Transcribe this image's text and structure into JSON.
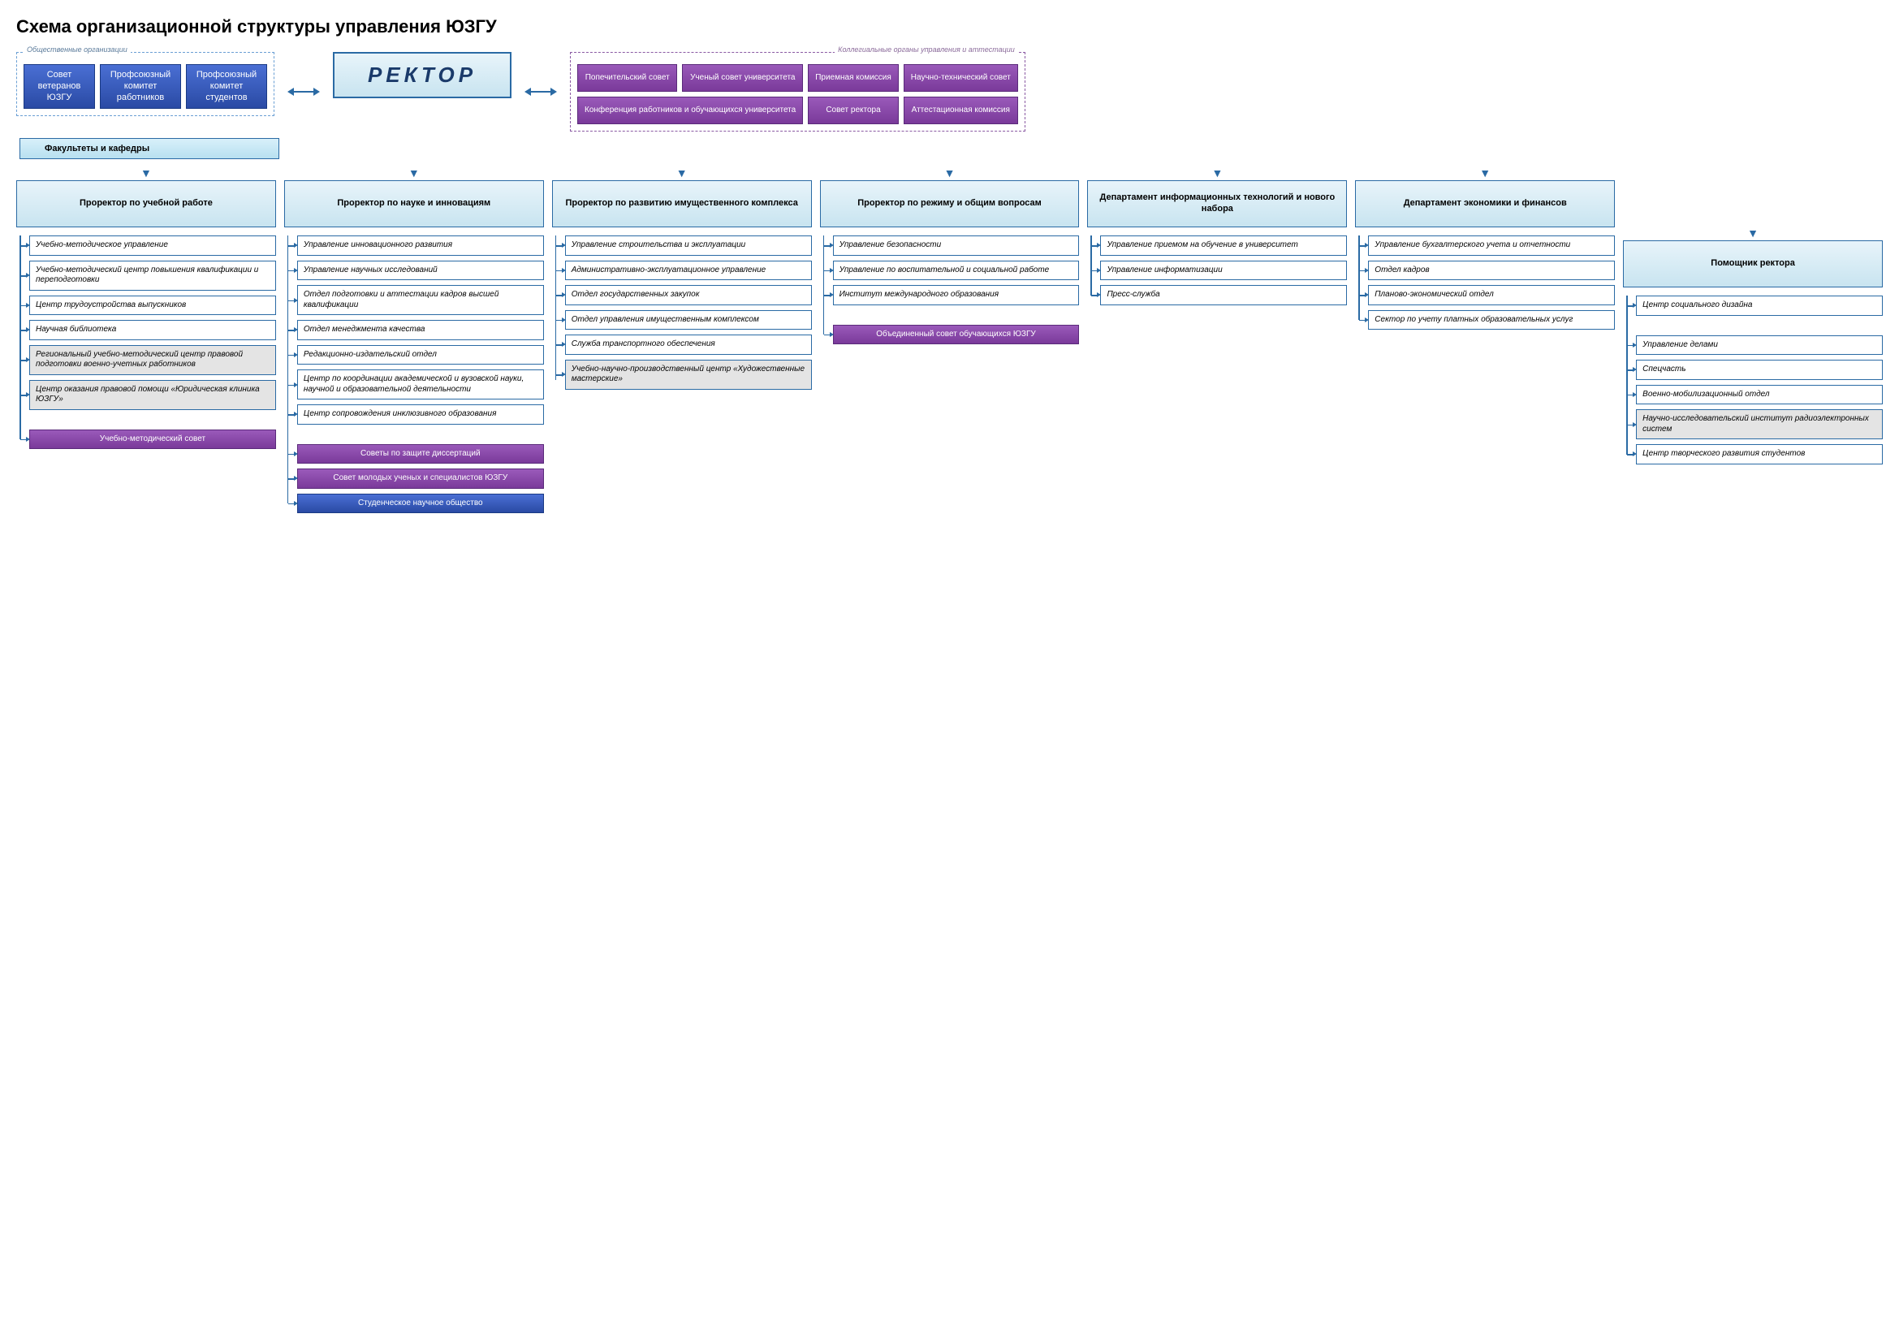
{
  "title": "Схема организационной структуры управления ЮЗГУ",
  "public_orgs_label": "Общественные организации",
  "collegial_label": "Коллегиальные органы управления и аттестации",
  "rektor_label": "РЕКТОР",
  "faculties_label": "Факультеты    и    кафедры",
  "public_orgs": [
    "Совет ветеранов ЮЗГУ",
    "Профсоюзный комитет работников",
    "Профсоюзный комитет студентов"
  ],
  "collegial_row1": [
    "Попечительский совет",
    "Ученый совет университета",
    "Приемная комиссия",
    "Научно-технический совет"
  ],
  "collegial_row2": [
    "Конференция работников и обучающихся университета",
    "Совет ректора",
    "Аттестационная комиссия"
  ],
  "columns": [
    {
      "head": "Проректор по учебной работе",
      "items": [
        {
          "t": "Учебно-методическое управление"
        },
        {
          "t": "Учебно-методический центр повышения квалификации и переподготовки"
        },
        {
          "t": "Центр трудоустройства выпускников"
        },
        {
          "t": "Научная библиотека"
        },
        {
          "t": "Региональный учебно-методический центр правовой подготовки военно-учетных работников",
          "c": "gray"
        },
        {
          "t": "Центр оказания правовой помощи «Юридическая клиника ЮЗГУ»",
          "c": "gray"
        },
        {
          "t": "Учебно-методический совет",
          "c": "purple",
          "gap": true
        }
      ]
    },
    {
      "head": "Проректор по науке и инновациям",
      "items": [
        {
          "t": "Управление инновационного развития"
        },
        {
          "t": "Управление научных исследований"
        },
        {
          "t": "Отдел подготовки и аттестации кадров высшей квалификации"
        },
        {
          "t": "Отдел менеджмента качества"
        },
        {
          "t": "Редакционно-издательский отдел"
        },
        {
          "t": "Центр по координации академической и вузовской науки, научной и образовательной деятельности"
        },
        {
          "t": "Центр сопровождения инклюзивного образования"
        },
        {
          "t": "Советы по защите диссертаций",
          "c": "purple",
          "gap": true
        },
        {
          "t": "Совет молодых ученых и специалистов ЮЗГУ",
          "c": "purple"
        },
        {
          "t": "Студенческое научное общество",
          "c": "blue"
        }
      ]
    },
    {
      "head": "Проректор по развитию имущественного комплекса",
      "items": [
        {
          "t": "Управление строительства и эксплуатации"
        },
        {
          "t": "Административно-эксплуатационное управление"
        },
        {
          "t": "Отдел государственных закупок"
        },
        {
          "t": "Отдел управления имущественным комплексом"
        },
        {
          "t": "Служба транспортного обеспечения"
        },
        {
          "t": "Учебно-научно-производственный центр «Художественные мастерские»",
          "c": "gray"
        }
      ]
    },
    {
      "head": "Проректор по режиму и общим вопросам",
      "items": [
        {
          "t": "Управление безопасности"
        },
        {
          "t": "Управление по воспитательной и социальной работе"
        },
        {
          "t": "Институт международного образования"
        },
        {
          "t": "Объединенный совет обучающихся ЮЗГУ",
          "c": "purple",
          "gap": true
        }
      ]
    },
    {
      "head": "Департамент информационных технологий и нового набора",
      "items": [
        {
          "t": "Управление приемом на обучение в университет"
        },
        {
          "t": "Управление информатизации"
        },
        {
          "t": "Пресс-служба"
        }
      ]
    },
    {
      "head": "Департамент экономики и финансов",
      "items": [
        {
          "t": "Управление бухгалтерского учета и отчетности"
        },
        {
          "t": "Отдел кадров"
        },
        {
          "t": "Планово-экономический отдел"
        },
        {
          "t": "Сектор по учету платных образовательных услуг"
        }
      ]
    },
    {
      "head": "Помощник ректора",
      "offset": true,
      "items": [
        {
          "t": "Центр социального дизайна"
        },
        {
          "t": "Управление делами",
          "gap": true
        },
        {
          "t": "Спецчасть"
        },
        {
          "t": "Военно-мобилизационный отдел"
        },
        {
          "t": "Научно-исследовательский институт радиоэлектронных систем",
          "c": "gray"
        },
        {
          "t": "Центр творческого развития студентов"
        }
      ]
    }
  ],
  "colors": {
    "blue_border": "#2a6aa4",
    "blue_fill_top": "#4a6fd4",
    "blue_fill_bot": "#2a4aa4",
    "purple_fill_top": "#9a5aba",
    "purple_fill_bot": "#7a3a9a",
    "light_blue_top": "#e8f4fa",
    "light_blue_bot": "#c8e4f0",
    "gray_fill": "#e4e4e4"
  }
}
